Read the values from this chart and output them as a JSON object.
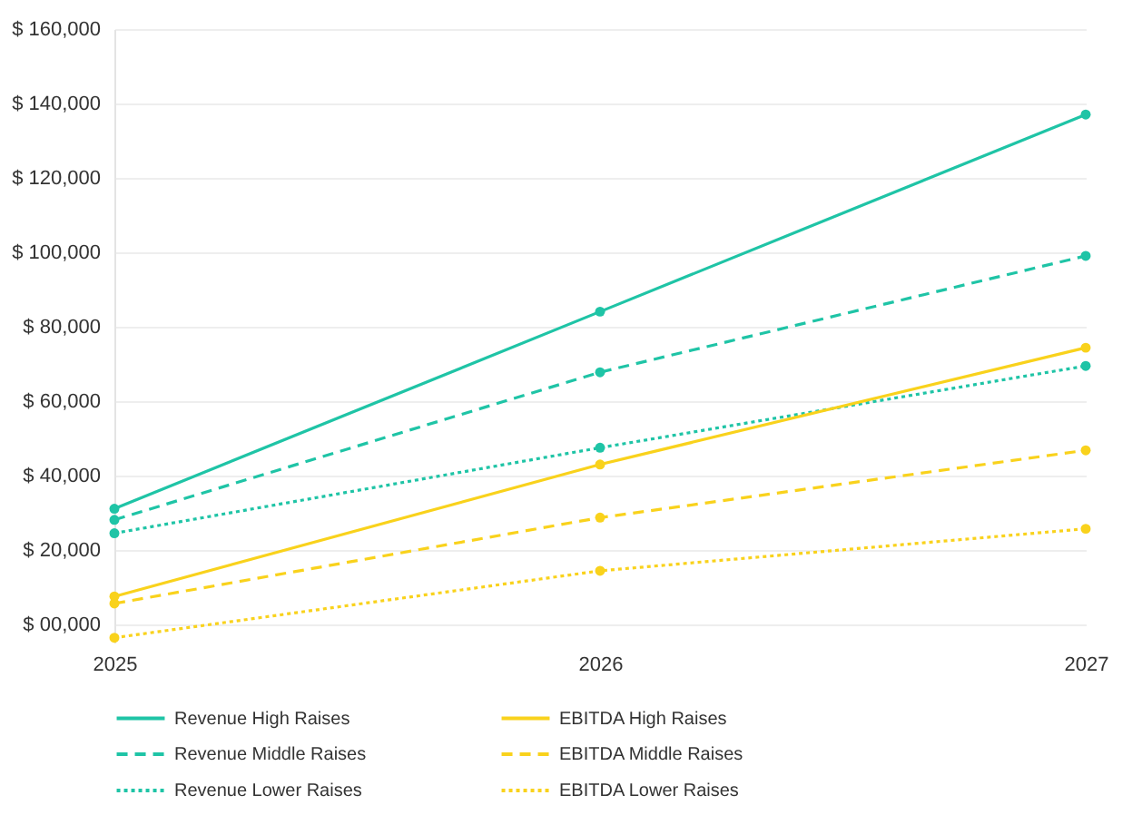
{
  "chart_data": {
    "type": "line",
    "x": [
      2025,
      2026,
      2027
    ],
    "xlim": [
      2025,
      2027
    ],
    "xticks": [
      2025,
      2026,
      2027
    ],
    "ylim": [
      -5000,
      160000
    ],
    "yticks": [
      {
        "value": 0,
        "label": "$ 00,000"
      },
      {
        "value": 20000,
        "label": "$ 20,000"
      },
      {
        "value": 40000,
        "label": "$ 40,000"
      },
      {
        "value": 60000,
        "label": "$ 60,000"
      },
      {
        "value": 80000,
        "label": "$ 80,000"
      },
      {
        "value": 100000,
        "label": "$ 100,000"
      },
      {
        "value": 120000,
        "label": "$ 120,000"
      },
      {
        "value": 140000,
        "label": "$ 140,000"
      },
      {
        "value": 160000,
        "label": "$ 160,000"
      }
    ],
    "grid": "y",
    "legend": "bottom",
    "marker": "circle",
    "series": [
      {
        "name": "Revenue High Raises",
        "color": "#1fc4a6",
        "line_style": "solid",
        "values": [
          31000,
          84000,
          137000
        ]
      },
      {
        "name": "Revenue Middle Raises",
        "color": "#1fc4a6",
        "line_style": "dashed",
        "values": [
          28000,
          67700,
          99000
        ]
      },
      {
        "name": "Revenue Lower Raises",
        "color": "#1fc4a6",
        "line_style": "dotted",
        "values": [
          24400,
          47400,
          69400
        ]
      },
      {
        "name": "EBITDA High Raises",
        "color": "#f9d21c",
        "line_style": "solid",
        "values": [
          7400,
          42900,
          74300
        ]
      },
      {
        "name": "EBITDA Middle Raises",
        "color": "#f9d21c",
        "line_style": "dashed",
        "values": [
          5500,
          28600,
          46700
        ]
      },
      {
        "name": "EBITDA Lower Raises",
        "color": "#f9d21c",
        "line_style": "dotted",
        "values": [
          -3700,
          14300,
          25600
        ]
      }
    ]
  }
}
